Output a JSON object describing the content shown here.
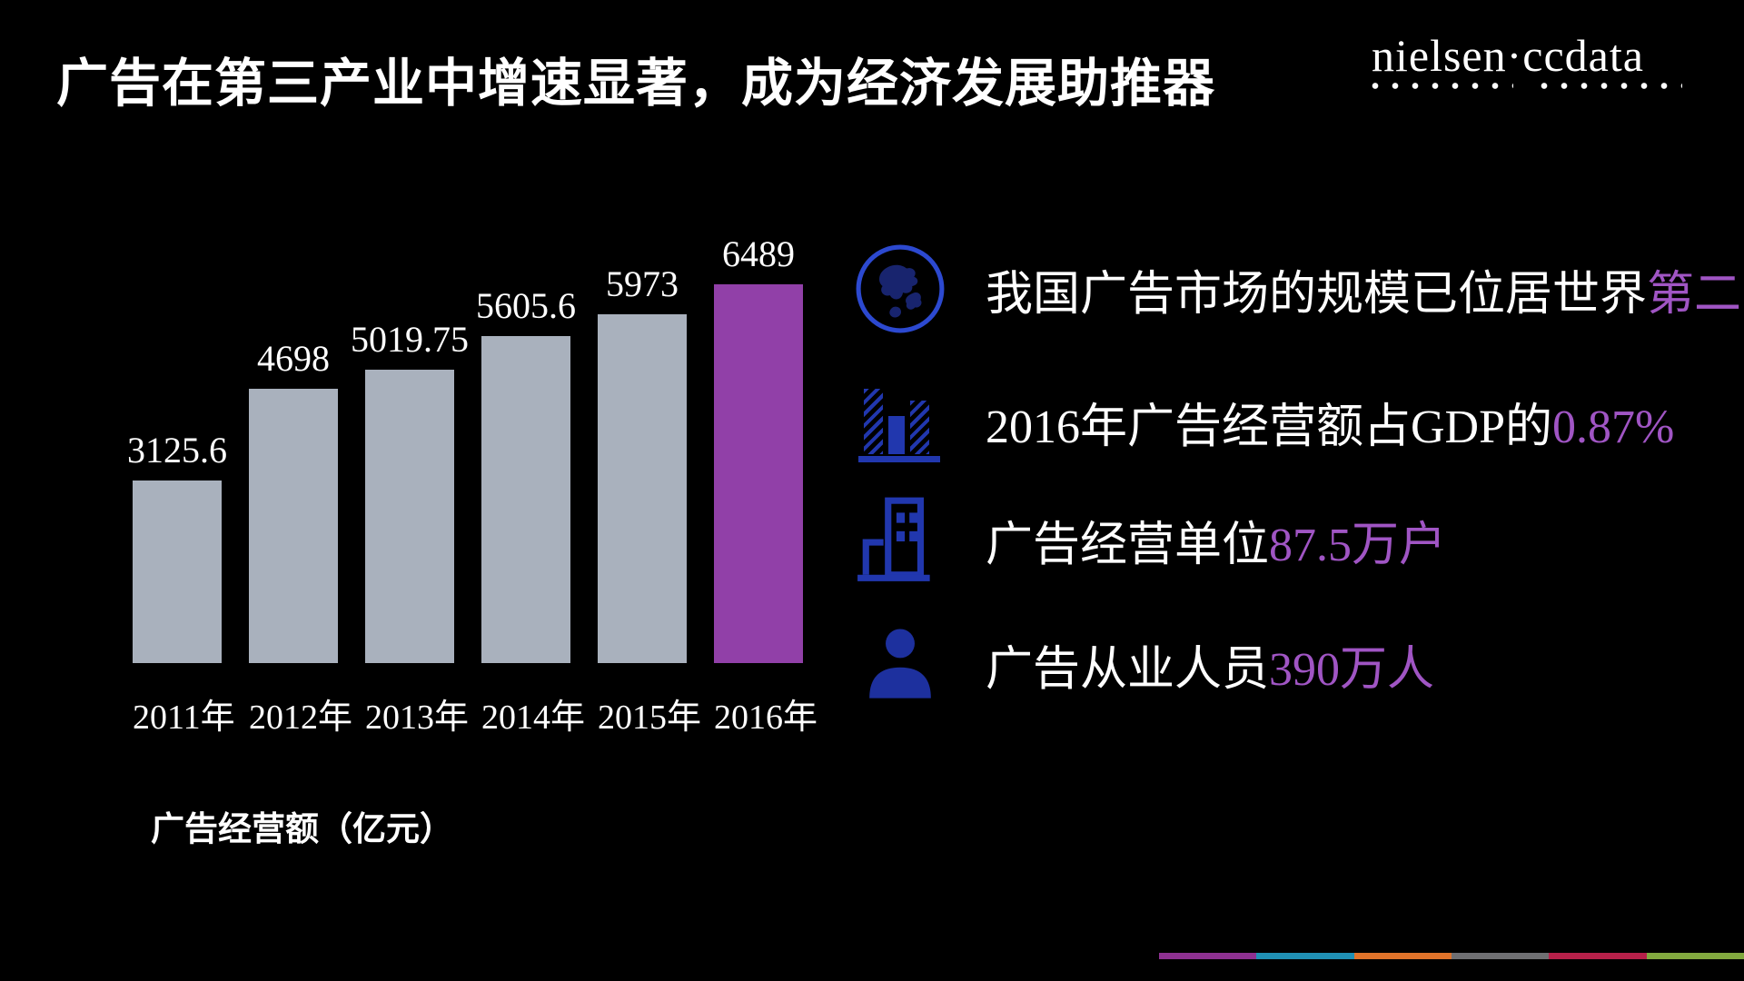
{
  "title": "广告在第三产业中增速显著，成为经济发展助推器",
  "logo": {
    "text": "nielsen·ccdata"
  },
  "chart_data": {
    "type": "bar",
    "categories": [
      "2011年",
      "2012年",
      "2013年",
      "2014年",
      "2015年",
      "2016年"
    ],
    "values": [
      3125.6,
      4698,
      5019.75,
      5605.6,
      5973,
      6489
    ],
    "value_labels": [
      "3125.6",
      "4698",
      "5019.75",
      "5605.6",
      "5973",
      "6489"
    ],
    "title": "广告经营额（亿元）",
    "xlabel": "",
    "ylabel": "",
    "ylim": [
      0,
      6489
    ],
    "grid": false,
    "legend_position": "none",
    "bar_color": "#a9b1bd",
    "highlight_index": 5,
    "highlight_color": "#9140a8"
  },
  "facts": [
    {
      "icon": "globe-icon",
      "text": "我国广告市场的规模已位居世界",
      "highlight": "第二"
    },
    {
      "icon": "gdp-chart-icon",
      "text": "2016年广告经营额占GDP的",
      "highlight": "0.87%"
    },
    {
      "icon": "building-icon",
      "text": "广告经营单位",
      "highlight": "87.5万户"
    },
    {
      "icon": "person-icon",
      "text": "广告从业人员",
      "highlight": "390万人"
    }
  ],
  "colors": {
    "background": "#000000",
    "text": "#ffffff",
    "accent_purple": "#a055c4",
    "icon_blue": "#2137ae",
    "bar_gray": "#a9b1bd",
    "bar_purple": "#9140a8"
  },
  "footer_strip": {
    "colors": [
      "#8e3191",
      "#2090b4",
      "#e0732a",
      "#6f6f72",
      "#b62049",
      "#82a93f"
    ]
  }
}
